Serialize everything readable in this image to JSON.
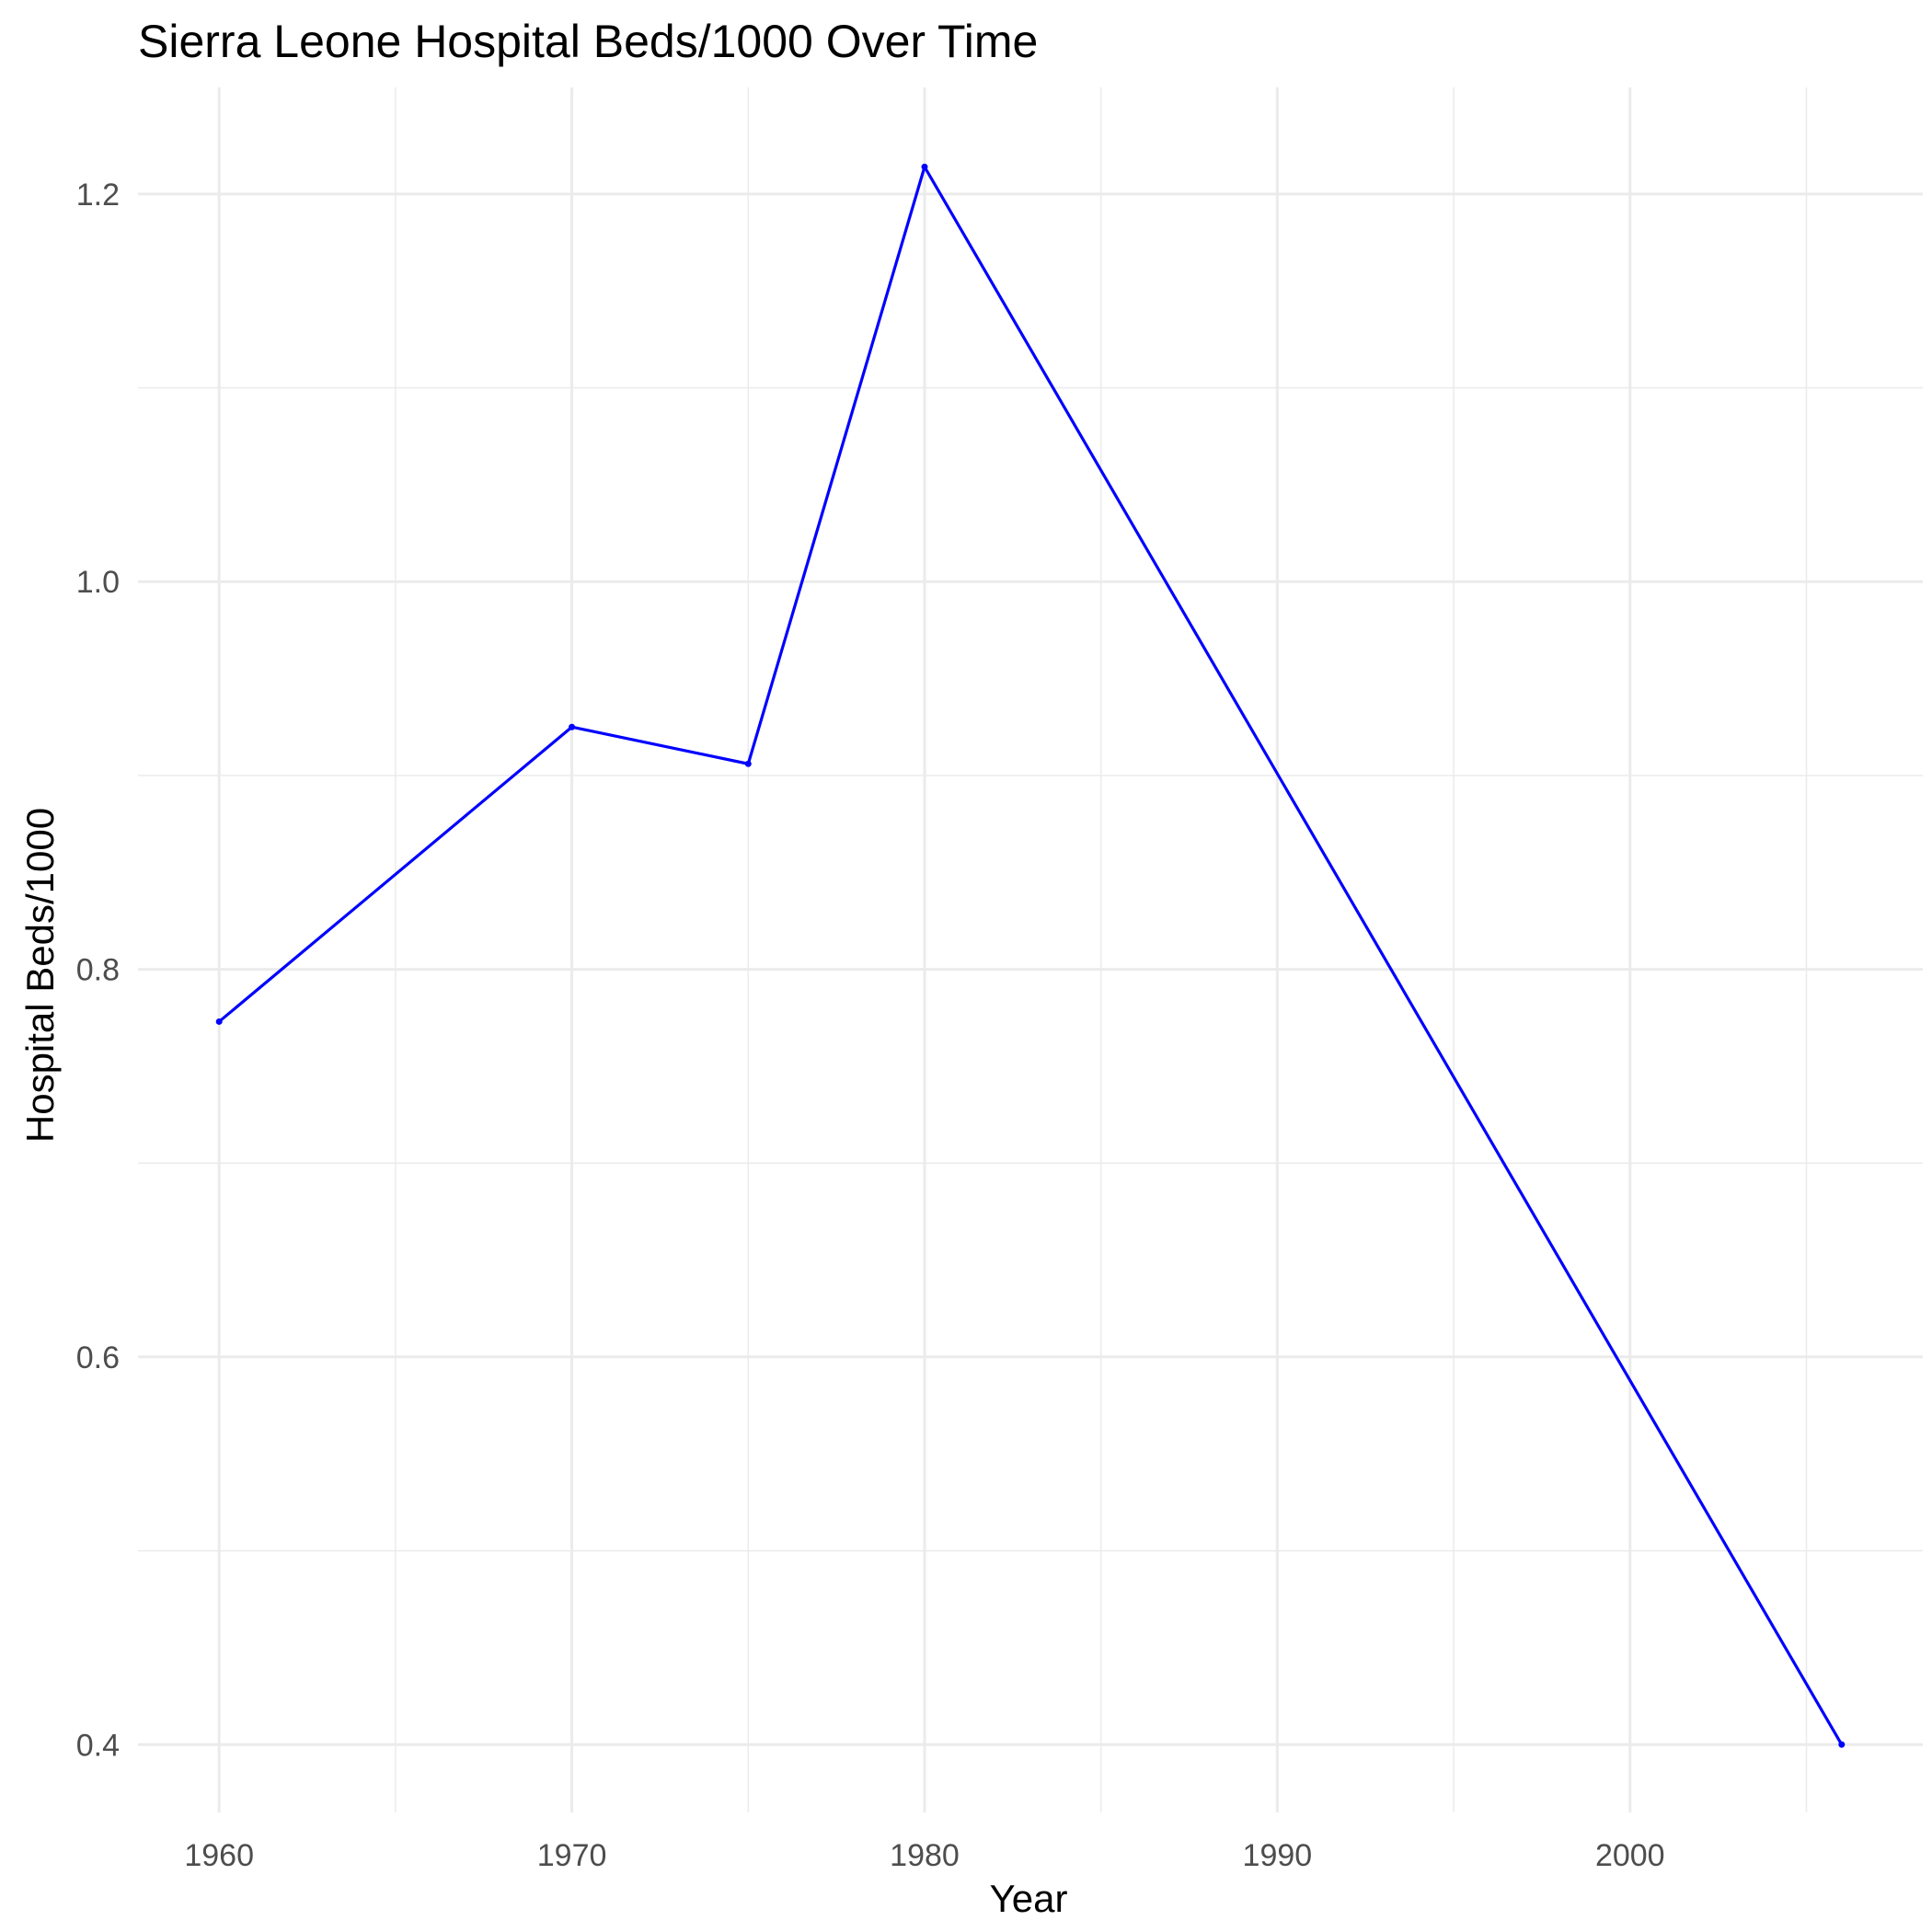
{
  "chart_data": {
    "type": "line",
    "title": "Sierra Leone Hospital Beds/1000 Over Time",
    "xlabel": "Year",
    "ylabel": "Hospital Beds/1000",
    "xlim": [
      1957.7,
      2008.3
    ],
    "ylim": [
      0.365,
      1.255
    ],
    "x_ticks": [
      1960,
      1970,
      1980,
      1990,
      2000
    ],
    "y_ticks": [
      0.4,
      0.6,
      0.8,
      1.0,
      1.2
    ],
    "y_tick_labels": [
      "0.4",
      "0.6",
      "0.8",
      "1.0",
      "1.2"
    ],
    "grid": true,
    "series": [
      {
        "color": "#0000ff",
        "x": [
          1960,
          1970,
          1975,
          1980,
          2006
        ],
        "y": [
          0.773,
          0.925,
          0.906,
          1.214,
          0.4
        ]
      }
    ]
  }
}
